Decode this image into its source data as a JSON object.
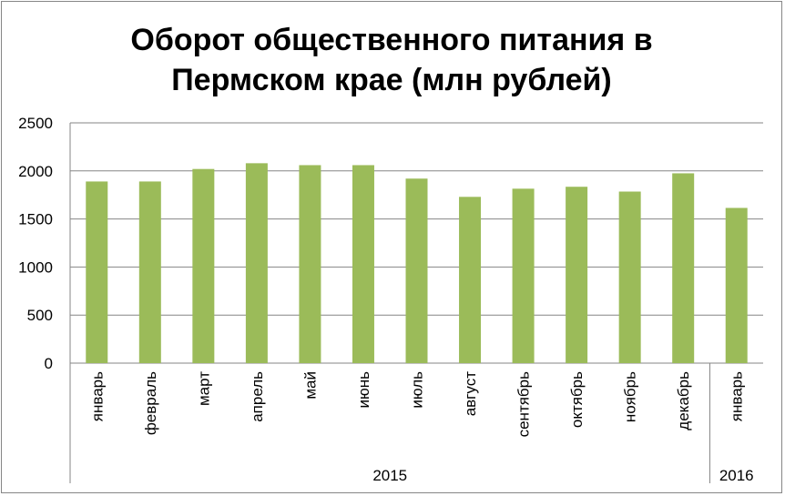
{
  "chart_data": {
    "type": "bar",
    "title_lines": [
      "Оборот общественного питания в",
      "Пермском крае (млн рублей)"
    ],
    "categories": [
      "январь",
      "февраль",
      "март",
      "апрель",
      "май",
      "июнь",
      "июль",
      "август",
      "сентябрь",
      "октябрь",
      "ноябрь",
      "декабрь",
      "январь"
    ],
    "year_groups": [
      {
        "label": "2015",
        "count": 12
      },
      {
        "label": "2016",
        "count": 1
      }
    ],
    "series": [
      {
        "values": [
          1890,
          1890,
          2020,
          2080,
          2060,
          2060,
          1920,
          1730,
          1815,
          1835,
          1785,
          1975,
          1615
        ]
      }
    ],
    "yticks": [
      "0",
      "500",
      "1000",
      "1500",
      "2000",
      "2500"
    ],
    "ylim": [
      0,
      2500
    ],
    "grid": true,
    "legend": "none",
    "bar_color": "#9BBB59",
    "grid_color": "#868686"
  }
}
